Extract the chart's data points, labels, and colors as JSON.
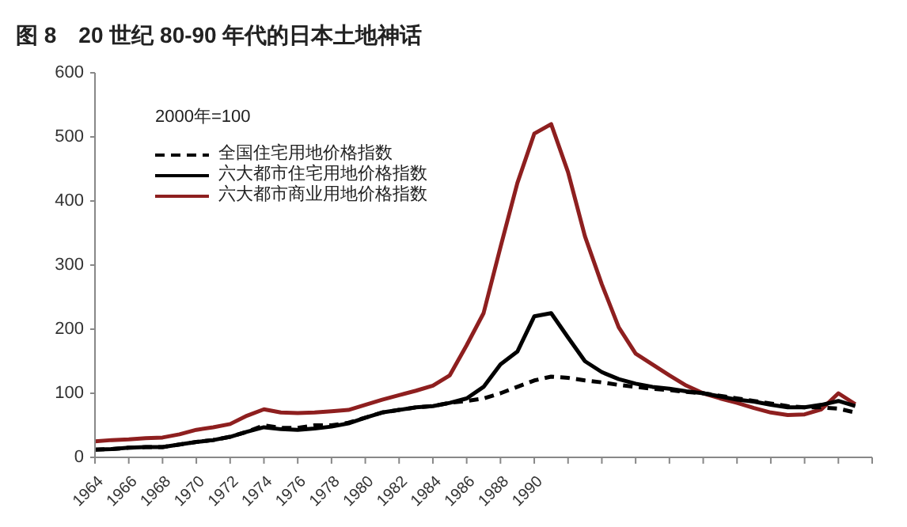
{
  "chart_data": {
    "type": "line",
    "title": "图 8　20 世纪 80-90 年代的日本土地神话",
    "annotations": [
      "2000年=100"
    ],
    "x": [
      1964,
      1965,
      1966,
      1967,
      1968,
      1969,
      1970,
      1971,
      1972,
      1973,
      1974,
      1975,
      1976,
      1977,
      1978,
      1979,
      1980,
      1981,
      1982,
      1983,
      1984,
      1985,
      1986,
      1987,
      1988,
      1989,
      1990,
      1991,
      1992,
      1993,
      1994,
      1995,
      1996,
      1997,
      1998,
      1999,
      2000,
      2001,
      2002,
      2003,
      2004,
      2005,
      2006,
      2007,
      2008,
      2009
    ],
    "series": [
      {
        "name": "全国住宅用地价格指数",
        "color": "#000000",
        "line_style": "dashed",
        "values": [
          12,
          13,
          15,
          16,
          16,
          20,
          24,
          27,
          32,
          40,
          50,
          46,
          46,
          50,
          50,
          54,
          62,
          70,
          74,
          78,
          80,
          85,
          88,
          92,
          100,
          110,
          120,
          126,
          124,
          120,
          117,
          113,
          110,
          107,
          105,
          102,
          100,
          96,
          92,
          88,
          84,
          80,
          78,
          78,
          76,
          70
        ]
      },
      {
        "name": "六大都市住宅用地价格指数",
        "color": "#000000",
        "line_style": "solid",
        "values": [
          12,
          13,
          15,
          16,
          16,
          20,
          24,
          27,
          32,
          40,
          47,
          44,
          43,
          45,
          48,
          53,
          62,
          70,
          74,
          78,
          80,
          85,
          92,
          110,
          145,
          165,
          220,
          225,
          187,
          150,
          133,
          122,
          115,
          110,
          107,
          103,
          100,
          95,
          90,
          87,
          82,
          78,
          78,
          82,
          88,
          80
        ]
      },
      {
        "name": "六大都市商业用地价格指数",
        "color": "#8e1f1f",
        "line_style": "solid",
        "values": [
          25,
          27,
          28,
          30,
          31,
          36,
          43,
          47,
          52,
          65,
          75,
          70,
          69,
          70,
          72,
          74,
          82,
          90,
          97,
          104,
          112,
          128,
          175,
          225,
          328,
          428,
          505,
          520,
          445,
          345,
          270,
          203,
          162,
          145,
          128,
          112,
          100,
          92,
          85,
          77,
          70,
          66,
          67,
          75,
          100,
          83
        ]
      }
    ],
    "xlim": [
      1964,
      2010
    ],
    "xticks": [
      1964,
      1966,
      1968,
      1970,
      1972,
      1974,
      1976,
      1978,
      1980,
      1982,
      1984,
      1986,
      1988,
      1990,
      {
        "value": 1992,
        "label": null
      },
      {
        "value": 1994,
        "label": null
      },
      {
        "value": 1996,
        "label": null
      },
      {
        "value": 1998,
        "label": null
      },
      {
        "value": 2000,
        "label": null
      },
      {
        "value": 2002,
        "label": null
      },
      {
        "value": 2004,
        "label": null
      },
      {
        "value": 2006,
        "label": null
      },
      {
        "value": 2008,
        "label": null
      },
      {
        "value": 2010,
        "label": null
      }
    ],
    "ylim": [
      0,
      600
    ],
    "yticks": [
      0,
      100,
      200,
      300,
      400,
      500,
      600
    ],
    "grid": false,
    "legend": "top left",
    "marker": "none"
  }
}
